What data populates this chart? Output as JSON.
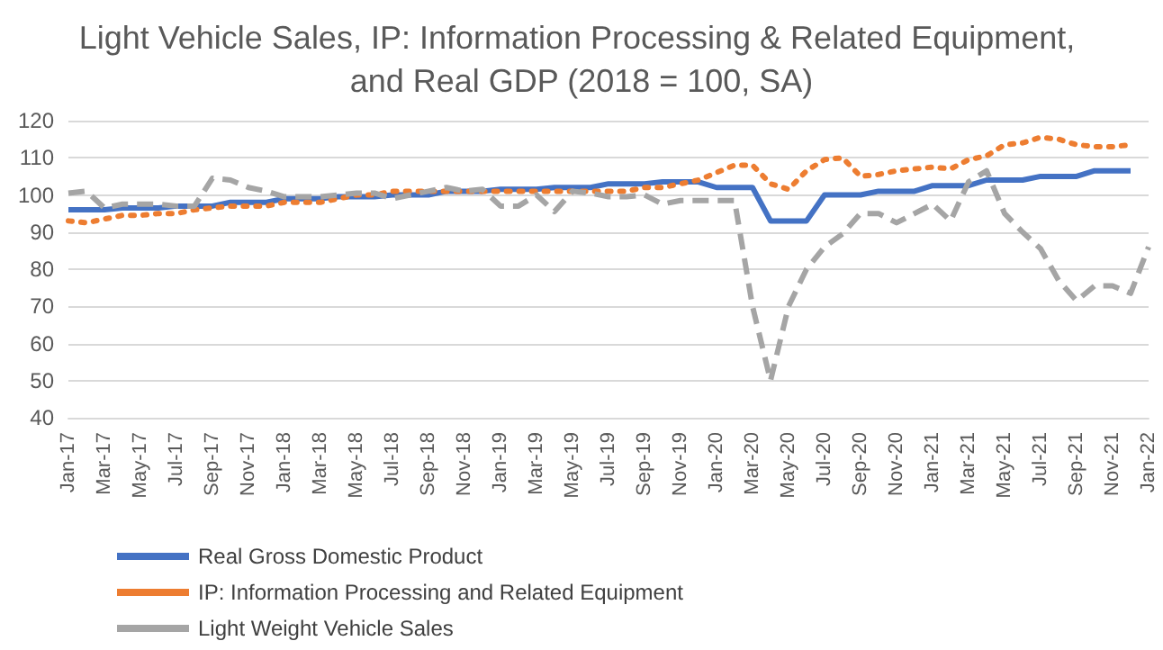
{
  "chart_data": {
    "type": "line",
    "title": "Light Vehicle Sales, IP: Information Processing & Related Equipment, and Real GDP (2018 = 100, SA)",
    "categories": [
      "Jan-17",
      null,
      "Mar-17",
      null,
      "May-17",
      null,
      "Jul-17",
      null,
      "Sep-17",
      null,
      "Nov-17",
      null,
      "Jan-18",
      null,
      "Mar-18",
      null,
      "May-18",
      null,
      "Jul-18",
      null,
      "Sep-18",
      null,
      "Nov-18",
      null,
      "Jan-19",
      null,
      "Mar-19",
      null,
      "May-19",
      null,
      "Jul-19",
      null,
      "Sep-19",
      null,
      "Nov-19",
      null,
      "Jan-20",
      null,
      "Mar-20",
      null,
      "May-20",
      null,
      "Jul-20",
      null,
      "Sep-20",
      null,
      "Nov-20",
      null,
      "Jan-21",
      null,
      "Mar-21",
      null,
      "May-21",
      null,
      "Jul-21",
      null,
      "Sep-21",
      null,
      "Nov-21",
      null,
      "Jan-22"
    ],
    "series": [
      {
        "name": "Real Gross Domestic Product",
        "color": "#4472c4",
        "line_style": "solid",
        "values": [
          96,
          96,
          96,
          96.5,
          96.5,
          96.5,
          97,
          97,
          97,
          98,
          98,
          98,
          99,
          99,
          99,
          99.5,
          99.5,
          99.5,
          100,
          100,
          100,
          101,
          101,
          101,
          101.5,
          101.5,
          101.5,
          102,
          102,
          102,
          103,
          103,
          103,
          103.5,
          103.5,
          103.5,
          102,
          102,
          102,
          93,
          93,
          93,
          100,
          100,
          100,
          101,
          101,
          101,
          102.5,
          102.5,
          102.5,
          104,
          104,
          104,
          105,
          105,
          105,
          106.5,
          106.5,
          106.5,
          null
        ]
      },
      {
        "name": "IP: Information Processing and Related Equipment",
        "color": "#ed7d31",
        "line_style": "dotted",
        "values": [
          93,
          92.5,
          93.5,
          94.5,
          94.5,
          95,
          95,
          96,
          96.5,
          97,
          97,
          97,
          98,
          98,
          98,
          99,
          100,
          100,
          101,
          101,
          101,
          101,
          101,
          101,
          101,
          101,
          101,
          101,
          101,
          101,
          101,
          101,
          102,
          102,
          103,
          104,
          106,
          108,
          108,
          103,
          101.5,
          106.5,
          109.5,
          110,
          105,
          105.5,
          106.5,
          107,
          107.5,
          107,
          109.5,
          110.5,
          113.5,
          114,
          115.5,
          115,
          113.5,
          113,
          113,
          113.5,
          null
        ]
      },
      {
        "name": "Light Weight Vehicle Sales",
        "color": "#a5a5a5",
        "line_style": "dashed",
        "values": [
          100.5,
          101,
          96.5,
          97.5,
          97.5,
          97.5,
          97,
          97,
          104.5,
          104,
          102,
          101,
          99.5,
          99.5,
          99.5,
          100,
          100.5,
          100.5,
          99,
          100,
          101,
          102,
          101,
          101.5,
          97,
          97,
          100,
          95.5,
          101,
          100.5,
          99.5,
          99.5,
          100,
          97.5,
          98.5,
          98.5,
          98.5,
          98.5,
          70,
          50,
          70,
          80,
          86,
          89.5,
          95,
          95,
          92.5,
          95,
          97.5,
          93,
          103.5,
          106.5,
          95,
          90,
          85.5,
          77,
          71.5,
          75.5,
          75.5,
          73.5,
          86
        ]
      }
    ],
    "ylim": [
      40,
      120
    ],
    "yticks": [
      40,
      50,
      60,
      70,
      80,
      90,
      100,
      110,
      120
    ],
    "grid": "y",
    "legend": "bottom",
    "marker": "none"
  }
}
